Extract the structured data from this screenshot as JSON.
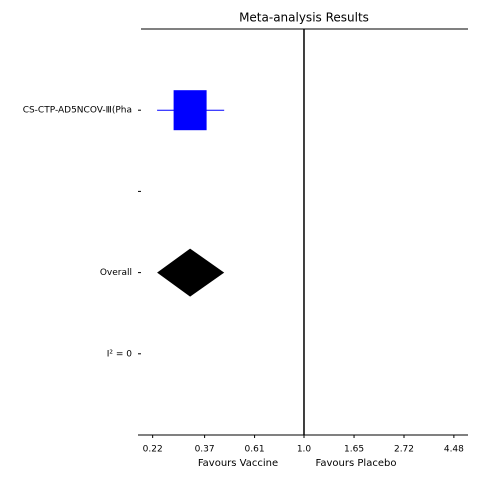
{
  "chart_data": {
    "type": "forest",
    "title": "Meta-analysis Results",
    "categories": [
      "CS-CTP-AD5NCOV-Ⅲ(Pha",
      null,
      "Overall",
      "I² = 0"
    ],
    "values": [
      0.32,
      null,
      0.32,
      null
    ],
    "lower": [
      0.23,
      null,
      0.23,
      null
    ],
    "upper": [
      0.45,
      null,
      0.45,
      null
    ],
    "markers": [
      "square",
      null,
      "diamond",
      null
    ],
    "colors": [
      "#0000ff",
      null,
      "#000000",
      null
    ],
    "reference": 1,
    "x_scale": "log",
    "xlim": [
      0.19,
      5.16
    ],
    "xticks": [
      0.22,
      0.37,
      0.61,
      {
        "value": 1,
        "label": "1.0"
      },
      1.65,
      2.72,
      4.48
    ],
    "xlabel_left": "Favours Vaccine",
    "xlabel_right": "Favours Placebo"
  }
}
